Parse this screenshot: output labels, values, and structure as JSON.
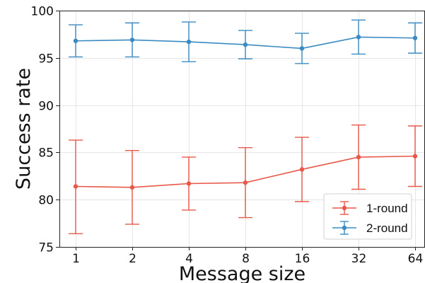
{
  "chart_data": {
    "type": "line",
    "title": "",
    "xlabel": "Message size",
    "ylabel": "Success rate",
    "categories": [
      "1",
      "2",
      "4",
      "8",
      "16",
      "32",
      "64"
    ],
    "yticks": [
      75,
      80,
      85,
      90,
      95,
      100
    ],
    "ylim": [
      75,
      100
    ],
    "grid": true,
    "legend_position": "lower-right",
    "series": [
      {
        "name": "1-round",
        "color": "#e8594a",
        "values": [
          81.4,
          81.3,
          81.7,
          81.8,
          83.2,
          84.5,
          84.6
        ],
        "error_low": [
          76.4,
          77.4,
          78.9,
          78.1,
          79.8,
          81.1,
          81.4
        ],
        "error_high": [
          86.3,
          85.2,
          84.5,
          85.5,
          86.6,
          87.9,
          87.8
        ]
      },
      {
        "name": "2-round",
        "color": "#3b8bc2",
        "values": [
          96.8,
          96.9,
          96.7,
          96.4,
          96.0,
          97.2,
          97.1
        ],
        "error_low": [
          95.1,
          95.1,
          94.6,
          94.9,
          94.4,
          95.4,
          95.5
        ],
        "error_high": [
          98.5,
          98.7,
          98.8,
          97.9,
          97.6,
          99.0,
          98.7
        ]
      }
    ]
  }
}
